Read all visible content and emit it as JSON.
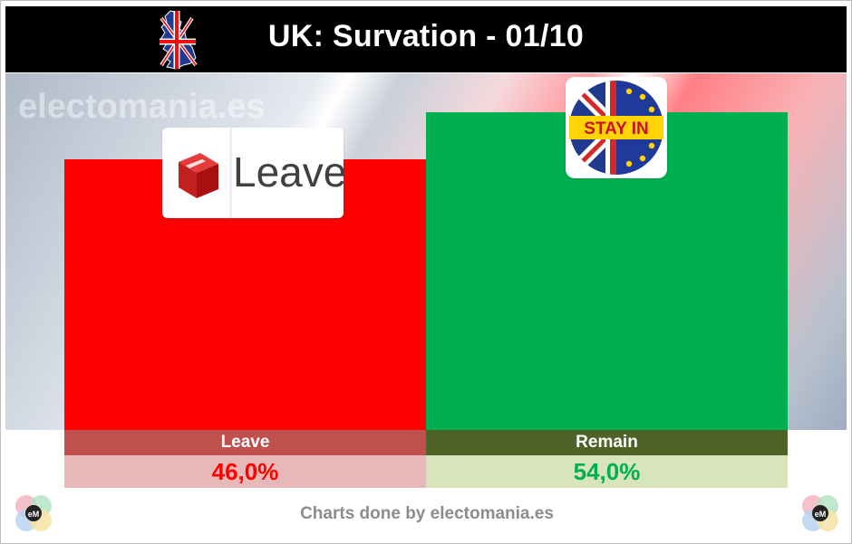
{
  "header": {
    "title": "UK: Survation - 01/10"
  },
  "watermark": "electomania.es",
  "logos": {
    "leave_word": "Leave",
    "remain_badge": "STAY IN"
  },
  "chart_data": {
    "type": "bar",
    "categories": [
      "Leave",
      "Remain"
    ],
    "values": [
      46.0,
      54.0
    ],
    "value_labels": [
      "46,0%",
      "54,0%"
    ],
    "ylim": [
      0,
      60
    ],
    "colors": {
      "bars": [
        "#ff0000",
        "#00b050"
      ],
      "label_bg": [
        "#c0504d",
        "#4f6228"
      ],
      "value_bg": [
        "#e6b9b8",
        "#d7e4bc"
      ],
      "value_text": [
        "#ff0000",
        "#00b050"
      ]
    }
  },
  "footer": {
    "credit": "Charts done by electomania.es",
    "logo_text": "eM"
  }
}
